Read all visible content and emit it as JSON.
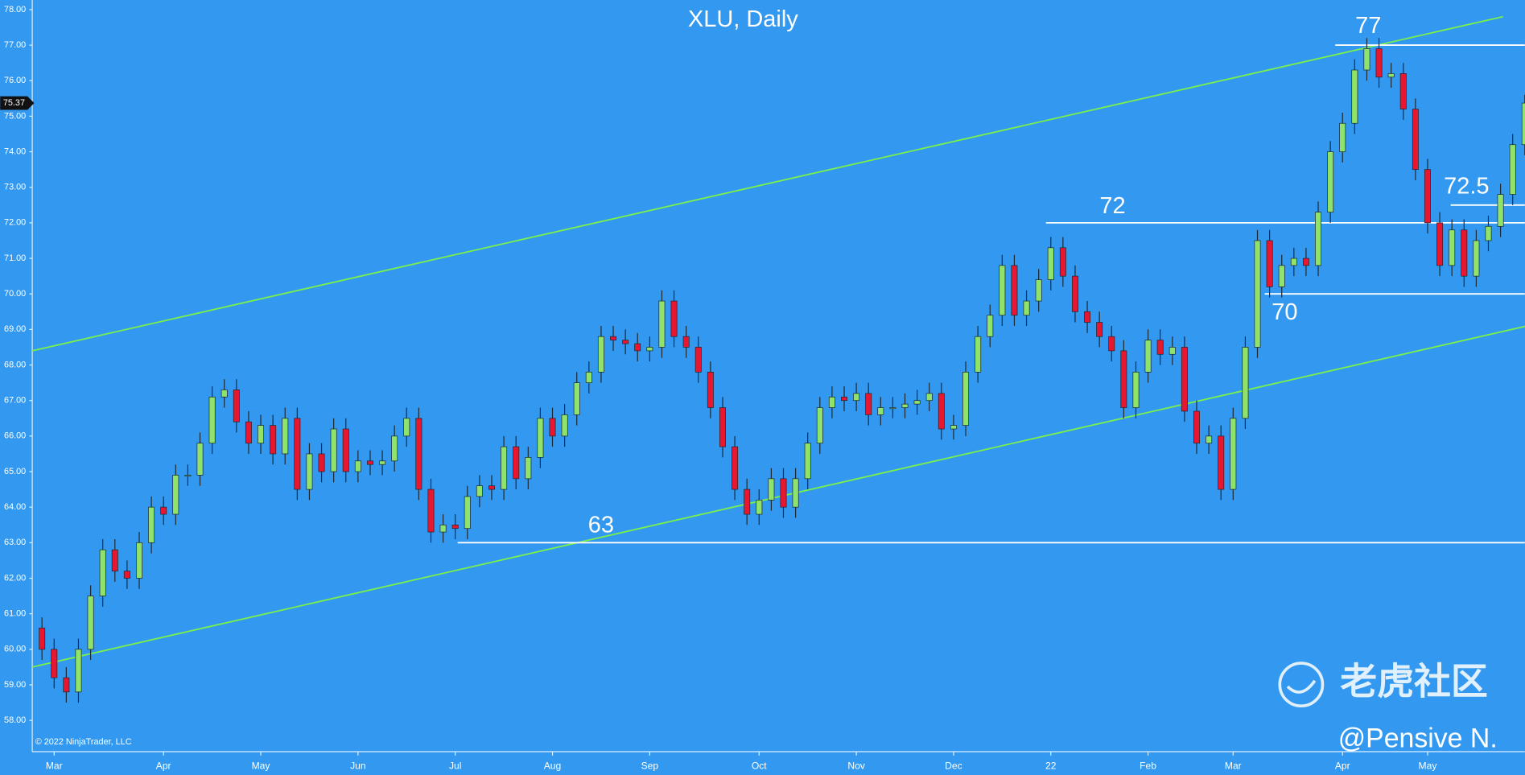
{
  "chart_data": {
    "type": "candlestick",
    "title": "XLU, Daily",
    "categories": [
      null,
      "Mar",
      null,
      null,
      null,
      null,
      null,
      null,
      null,
      null,
      "Apr",
      null,
      null,
      null,
      null,
      null,
      null,
      null,
      "May",
      null,
      null,
      null,
      null,
      null,
      null,
      null,
      "Jun",
      null,
      null,
      null,
      null,
      null,
      null,
      null,
      "Jul",
      null,
      null,
      null,
      null,
      null,
      null,
      null,
      "Aug",
      null,
      null,
      null,
      null,
      null,
      null,
      null,
      "Sep",
      null,
      null,
      null,
      null,
      null,
      null,
      null,
      null,
      "Oct",
      null,
      null,
      null,
      null,
      null,
      null,
      null,
      "Nov",
      null,
      null,
      null,
      null,
      null,
      null,
      null,
      "Dec",
      null,
      null,
      null,
      null,
      null,
      null,
      null,
      "22",
      null,
      null,
      null,
      null,
      null,
      null,
      null,
      "Feb",
      null,
      null,
      null,
      null,
      null,
      null,
      "Mar",
      null,
      null,
      null,
      null,
      null,
      null,
      null,
      null,
      "Apr",
      null,
      null,
      null,
      null,
      null,
      null,
      "May",
      null,
      null,
      null,
      null,
      null,
      null,
      null,
      null
    ],
    "open": [
      60.6,
      60.0,
      59.2,
      58.8,
      60.0,
      61.5,
      62.8,
      62.2,
      62.0,
      63.0,
      64.0,
      63.8,
      64.9,
      64.9,
      65.8,
      67.1,
      67.3,
      66.4,
      65.8,
      66.3,
      65.5,
      66.5,
      64.5,
      65.5,
      65.0,
      66.2,
      65.0,
      65.3,
      65.2,
      65.3,
      66.0,
      66.5,
      64.5,
      63.3,
      63.5,
      63.4,
      64.3,
      64.6,
      64.5,
      65.7,
      64.8,
      65.4,
      66.5,
      66.0,
      66.6,
      67.5,
      67.8,
      68.8,
      68.7,
      68.6,
      68.4,
      68.5,
      69.8,
      68.8,
      68.5,
      67.8,
      66.8,
      65.7,
      64.5,
      63.8,
      64.2,
      64.8,
      64.0,
      64.8,
      65.8,
      66.8,
      67.1,
      67.0,
      67.2,
      66.6,
      66.8,
      66.8,
      66.9,
      67.0,
      67.2,
      66.2,
      66.3,
      67.8,
      68.8,
      69.4,
      70.8,
      69.4,
      69.8,
      70.4,
      71.3,
      70.5,
      69.5,
      69.2,
      68.8,
      68.4,
      66.8,
      67.8,
      68.7,
      68.3,
      68.5,
      66.7,
      65.8,
      66.0,
      64.5,
      66.5,
      68.5,
      71.5,
      70.2,
      70.8,
      71.0,
      70.8,
      72.3,
      74.0,
      74.8,
      76.3,
      76.9,
      76.1,
      76.2,
      75.2,
      73.5,
      72.0,
      70.8,
      71.8,
      70.5,
      71.5,
      71.9,
      72.8,
      74.2
    ],
    "high": [
      60.9,
      60.3,
      59.5,
      60.3,
      61.8,
      63.1,
      63.1,
      62.5,
      63.3,
      64.3,
      64.3,
      65.2,
      65.2,
      66.1,
      67.4,
      67.6,
      67.6,
      66.7,
      66.6,
      66.6,
      66.8,
      66.8,
      65.8,
      65.8,
      66.5,
      66.5,
      65.6,
      65.6,
      65.6,
      66.3,
      66.8,
      66.8,
      64.8,
      63.8,
      63.8,
      64.6,
      64.9,
      64.9,
      66.0,
      66.0,
      65.7,
      66.8,
      66.8,
      66.9,
      67.8,
      68.1,
      69.1,
      69.1,
      69.0,
      68.9,
      68.8,
      70.1,
      70.1,
      69.1,
      68.8,
      68.1,
      67.1,
      66.0,
      64.8,
      64.5,
      65.1,
      65.1,
      65.1,
      66.1,
      67.1,
      67.4,
      67.4,
      67.5,
      67.5,
      67.1,
      67.1,
      67.2,
      67.3,
      67.5,
      67.5,
      66.6,
      68.1,
      69.1,
      69.7,
      71.1,
      71.1,
      70.1,
      70.7,
      71.6,
      71.6,
      70.8,
      69.8,
      69.5,
      69.1,
      68.7,
      68.1,
      69.0,
      69.0,
      68.8,
      68.8,
      67.0,
      66.3,
      66.3,
      66.8,
      68.8,
      71.8,
      71.8,
      71.1,
      71.3,
      71.3,
      72.6,
      74.3,
      75.1,
      76.6,
      77.2,
      77.2,
      76.5,
      76.5,
      75.5,
      73.8,
      72.3,
      72.1,
      72.1,
      71.8,
      72.2,
      73.1,
      74.5,
      75.6
    ],
    "low": [
      59.7,
      58.9,
      58.5,
      58.5,
      59.7,
      61.2,
      61.9,
      61.7,
      61.7,
      62.7,
      63.5,
      63.5,
      64.6,
      64.6,
      65.5,
      66.8,
      66.1,
      65.5,
      65.5,
      65.2,
      65.2,
      64.2,
      64.2,
      64.7,
      64.7,
      64.7,
      64.7,
      64.9,
      64.9,
      65.0,
      65.7,
      64.2,
      63.0,
      63.0,
      63.1,
      63.1,
      64.0,
      64.2,
      64.2,
      64.5,
      64.5,
      65.1,
      65.7,
      65.7,
      66.3,
      67.2,
      67.5,
      68.4,
      68.3,
      68.1,
      68.1,
      68.2,
      68.5,
      68.2,
      67.5,
      66.5,
      65.4,
      64.2,
      63.5,
      63.5,
      63.9,
      63.7,
      63.7,
      64.5,
      65.5,
      66.5,
      66.7,
      66.7,
      66.3,
      66.3,
      66.5,
      66.5,
      66.6,
      66.7,
      65.9,
      65.9,
      66.0,
      67.5,
      68.5,
      69.1,
      69.1,
      69.1,
      69.5,
      70.1,
      70.2,
      69.2,
      68.9,
      68.5,
      68.1,
      66.5,
      66.5,
      67.5,
      68.0,
      68.0,
      66.4,
      65.5,
      65.5,
      64.2,
      64.2,
      66.2,
      68.2,
      69.9,
      69.9,
      70.5,
      70.5,
      70.5,
      72.0,
      73.7,
      74.5,
      76.0,
      75.8,
      75.8,
      74.9,
      73.2,
      71.7,
      70.5,
      70.5,
      70.2,
      70.2,
      71.2,
      71.6,
      72.5,
      73.9
    ],
    "close": [
      60.0,
      59.2,
      58.8,
      60.0,
      61.5,
      62.8,
      62.2,
      62.0,
      63.0,
      64.0,
      63.8,
      64.9,
      64.9,
      65.8,
      67.1,
      67.3,
      66.4,
      65.8,
      66.3,
      65.5,
      66.5,
      64.5,
      65.5,
      65.0,
      66.2,
      65.0,
      65.3,
      65.2,
      65.3,
      66.0,
      66.5,
      64.5,
      63.3,
      63.5,
      63.4,
      64.3,
      64.6,
      64.5,
      65.7,
      64.8,
      65.4,
      66.5,
      66.0,
      66.6,
      67.5,
      67.8,
      68.8,
      68.7,
      68.6,
      68.4,
      68.5,
      69.8,
      68.8,
      68.5,
      67.8,
      66.8,
      65.7,
      64.5,
      63.8,
      64.2,
      64.8,
      64.0,
      64.8,
      65.8,
      66.8,
      67.1,
      67.0,
      67.2,
      66.6,
      66.8,
      66.8,
      66.9,
      67.0,
      67.2,
      66.2,
      66.3,
      67.8,
      68.8,
      69.4,
      70.8,
      69.4,
      69.8,
      70.4,
      71.3,
      70.5,
      69.5,
      69.2,
      68.8,
      68.4,
      66.8,
      67.8,
      68.7,
      68.3,
      68.5,
      66.7,
      65.8,
      66.0,
      64.5,
      66.5,
      68.5,
      71.5,
      70.2,
      70.8,
      71.0,
      70.8,
      72.3,
      74.0,
      74.8,
      76.3,
      76.9,
      76.1,
      76.2,
      75.2,
      73.5,
      72.0,
      70.8,
      71.8,
      70.5,
      71.5,
      71.9,
      72.8,
      74.2,
      75.37
    ],
    "up_color": "#8fe36a",
    "down_color": "#e8162f",
    "ylim": [
      57.12,
      78.27
    ],
    "yticks": [
      {
        "value": 58,
        "label": "58.00"
      },
      {
        "value": 59,
        "label": "59.00"
      },
      {
        "value": 60,
        "label": "60.00"
      },
      {
        "value": 61,
        "label": "61.00"
      },
      {
        "value": 62,
        "label": "62.00"
      },
      {
        "value": 63,
        "label": "63.00"
      },
      {
        "value": 64,
        "label": "64.00"
      },
      {
        "value": 65,
        "label": "65.00"
      },
      {
        "value": 66,
        "label": "66.00"
      },
      {
        "value": 67,
        "label": "67.00"
      },
      {
        "value": 68,
        "label": "68.00"
      },
      {
        "value": 69,
        "label": "69.00"
      },
      {
        "value": 70,
        "label": "70.00"
      },
      {
        "value": 71,
        "label": "71.00"
      },
      {
        "value": 72,
        "label": "72.00"
      },
      {
        "value": 73,
        "label": "73.00"
      },
      {
        "value": 74,
        "label": "74.00"
      },
      {
        "value": 75,
        "label": "75.00"
      },
      {
        "value": 76,
        "label": "76.00"
      },
      {
        "value": 77,
        "label": "77.00"
      },
      {
        "value": 78,
        "label": "78.00"
      }
    ],
    "levels": [
      77,
      72,
      70,
      63,
      72.5
    ],
    "level_color": "#ffffff",
    "trendlines": [
      [
        68.4,
        77.8
      ],
      [
        59.5,
        69.1
      ]
    ],
    "trendline_color": "#7cf04a",
    "copyright": "© 2022 NinjaTrader, LLC",
    "watermark": "老虎社区",
    "author": "@Pensive N."
  }
}
